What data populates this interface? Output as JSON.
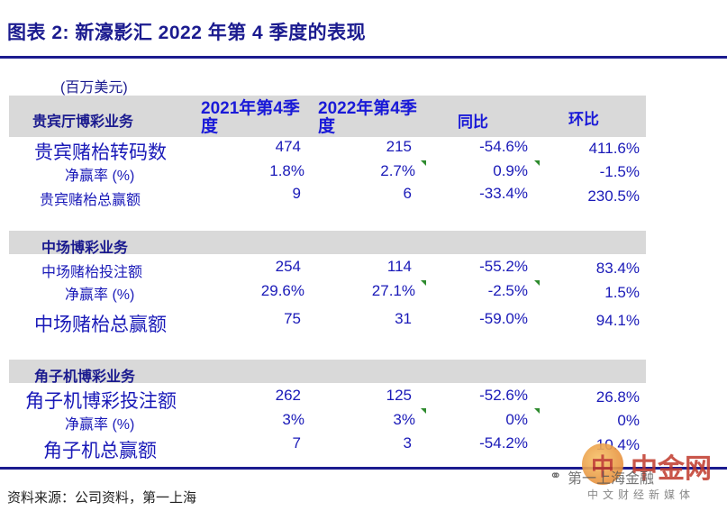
{
  "title": "图表 2:  新濠影汇 2022 年第 4 季度的表现",
  "unit": "(百万美元)",
  "headers": {
    "section1": "贵宾厅博彩业务",
    "col1": "2021年第4季度",
    "col2": "2022年第4季度",
    "col3": "同比",
    "col4": "环比"
  },
  "sections": [
    {
      "name": "贵宾厅博彩业务",
      "rows": [
        {
          "label": "贵宾赌枱转码数",
          "v1": "474",
          "v2": "215",
          "v3": "-54.6%",
          "v4": "411.6%"
        },
        {
          "label": "净赢率 (%)",
          "v1": "1.8%",
          "v2": "2.7%",
          "v3": "0.9%",
          "v4": "-1.5%"
        },
        {
          "label": "贵宾赌枱总赢额",
          "v1": "9",
          "v2": "6",
          "v3": "-33.4%",
          "v4": "230.5%"
        }
      ]
    },
    {
      "name": "中场博彩业务",
      "rows": [
        {
          "label": "中场赌枱投注额",
          "v1": "254",
          "v2": "114",
          "v3": "-55.2%",
          "v4": "83.4%"
        },
        {
          "label": "净赢率 (%)",
          "v1": "29.6%",
          "v2": "27.1%",
          "v3": "-2.5%",
          "v4": "1.5%"
        },
        {
          "label": "中场赌枱总赢额",
          "v1": "75",
          "v2": "31",
          "v3": "-59.0%",
          "v4": "94.1%"
        }
      ]
    },
    {
      "name": "角子机博彩业务",
      "rows": [
        {
          "label": "角子机博彩投注额",
          "v1": "262",
          "v2": "125",
          "v3": "-52.6%",
          "v4": "26.8%"
        },
        {
          "label": "净赢率 (%)",
          "v1": "3%",
          "v2": "3%",
          "v3": "0%",
          "v4": "0%"
        },
        {
          "label": "角子机总赢额",
          "v1": "7",
          "v2": "3",
          "v3": "-54.2%",
          "v4": "10.4%"
        }
      ]
    }
  ],
  "source": "资料来源：公司资料，第一上海",
  "watermark": {
    "logo_char": "中",
    "name": "中金网",
    "handle": "第一上海金融",
    "subtitle": "中文财经新媒体"
  },
  "colors": {
    "title": "#1b1b8f",
    "text": "#1a1ab8",
    "band": "#d9d9d9",
    "marker": "#2e8b2e"
  }
}
